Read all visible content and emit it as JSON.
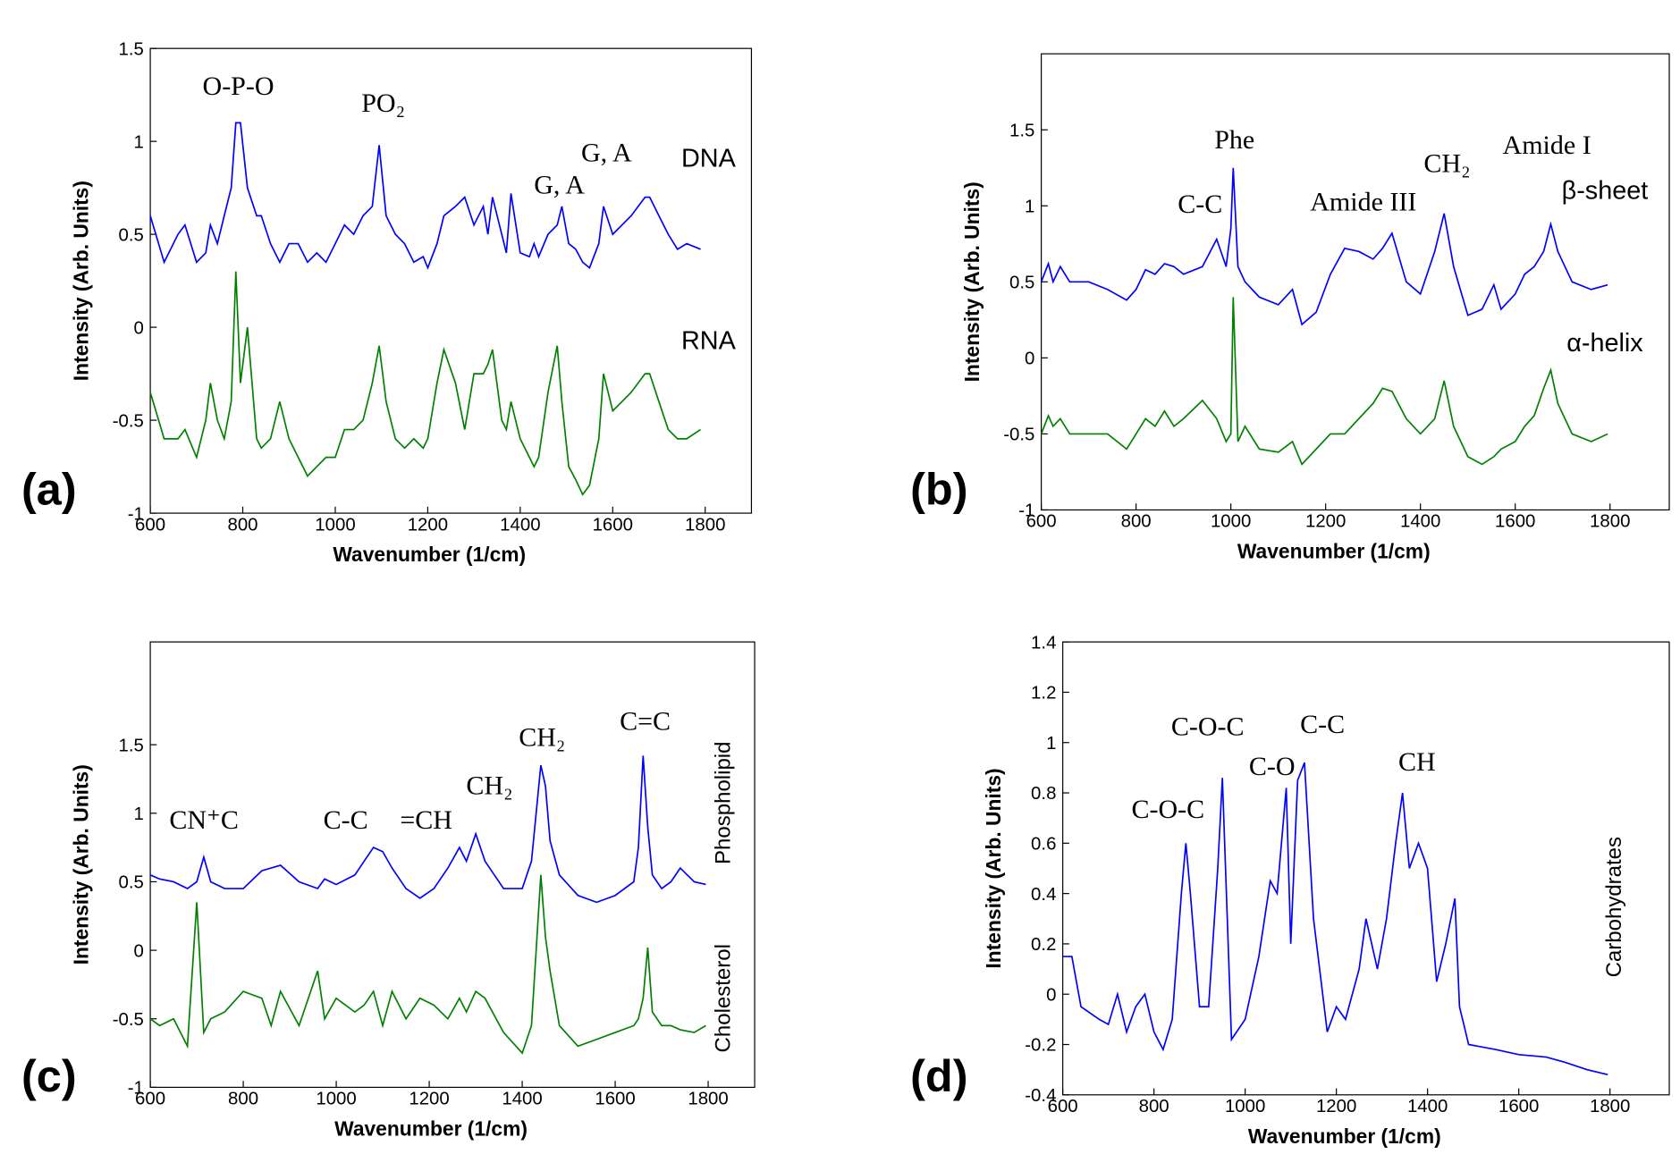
{
  "chart_data": [
    {
      "type": "line",
      "panel_label": "(a)",
      "xlabel": "Wavenumber (1/cm)",
      "ylabel": "Intensity (Arb. Units)",
      "xlim": [
        600,
        1900
      ],
      "ylim": [
        -1,
        1.5
      ],
      "xticks": [
        600,
        800,
        1000,
        1200,
        1400,
        1600,
        1800
      ],
      "yticks": [
        -1,
        -0.5,
        0,
        0.5,
        1,
        1.5
      ],
      "annotations": [
        "O-P-O",
        "PO₂",
        "G, A",
        "G, A"
      ],
      "x": [
        600,
        630,
        660,
        675,
        700,
        720,
        730,
        745,
        760,
        775,
        785,
        795,
        810,
        830,
        840,
        860,
        880,
        900,
        920,
        940,
        960,
        980,
        1000,
        1020,
        1040,
        1060,
        1080,
        1095,
        1110,
        1130,
        1150,
        1170,
        1190,
        1200,
        1220,
        1235,
        1260,
        1280,
        1300,
        1320,
        1330,
        1340,
        1360,
        1370,
        1380,
        1400,
        1420,
        1430,
        1440,
        1460,
        1480,
        1490,
        1505,
        1520,
        1535,
        1550,
        1570,
        1580,
        1600,
        1620,
        1640,
        1670,
        1680,
        1700,
        1720,
        1740,
        1760,
        1790
      ],
      "series": [
        {
          "name": "DNA",
          "color": "#0000ff",
          "values": [
            0.6,
            0.35,
            0.5,
            0.55,
            0.35,
            0.4,
            0.55,
            0.45,
            0.6,
            0.75,
            1.1,
            1.1,
            0.75,
            0.6,
            0.6,
            0.45,
            0.35,
            0.45,
            0.45,
            0.35,
            0.4,
            0.35,
            0.45,
            0.55,
            0.5,
            0.6,
            0.65,
            0.98,
            0.6,
            0.5,
            0.45,
            0.35,
            0.38,
            0.32,
            0.45,
            0.6,
            0.65,
            0.7,
            0.55,
            0.65,
            0.5,
            0.7,
            0.5,
            0.4,
            0.72,
            0.4,
            0.38,
            0.45,
            0.38,
            0.5,
            0.55,
            0.65,
            0.45,
            0.42,
            0.35,
            0.32,
            0.45,
            0.65,
            0.5,
            0.55,
            0.6,
            0.7,
            0.7,
            0.6,
            0.5,
            0.42,
            0.45,
            0.42
          ]
        },
        {
          "name": "RNA",
          "color": "#008000",
          "values": [
            -0.35,
            -0.6,
            -0.6,
            -0.55,
            -0.7,
            -0.5,
            -0.3,
            -0.5,
            -0.6,
            -0.4,
            0.3,
            -0.3,
            0.0,
            -0.6,
            -0.65,
            -0.6,
            -0.4,
            -0.6,
            -0.7,
            -0.8,
            -0.75,
            -0.7,
            -0.7,
            -0.55,
            -0.55,
            -0.5,
            -0.3,
            -0.1,
            -0.4,
            -0.6,
            -0.65,
            -0.6,
            -0.65,
            -0.6,
            -0.3,
            -0.12,
            -0.3,
            -0.55,
            -0.25,
            -0.25,
            -0.2,
            -0.12,
            -0.5,
            -0.55,
            -0.4,
            -0.6,
            -0.7,
            -0.75,
            -0.7,
            -0.35,
            -0.1,
            -0.4,
            -0.75,
            -0.82,
            -0.9,
            -0.85,
            -0.6,
            -0.25,
            -0.45,
            -0.4,
            -0.35,
            -0.25,
            -0.25,
            -0.4,
            -0.55,
            -0.6,
            -0.6,
            -0.55
          ]
        }
      ]
    },
    {
      "type": "line",
      "panel_label": "(b)",
      "xlabel": "Wavenumber (1/cm)",
      "ylabel": "Intensity (Arb. Units)",
      "xlim": [
        600,
        1925
      ],
      "ylim": [
        -1,
        2
      ],
      "xticks": [
        600,
        800,
        1000,
        1200,
        1400,
        1600,
        1800
      ],
      "yticks": [
        -1,
        -0.5,
        0,
        0.5,
        1,
        1.5
      ],
      "annotations": [
        "Phe",
        "C-C",
        "Amide III",
        "CH₂",
        "Amide I"
      ],
      "x": [
        600,
        615,
        625,
        640,
        660,
        700,
        740,
        780,
        800,
        820,
        840,
        860,
        880,
        900,
        940,
        970,
        990,
        1000,
        1005,
        1015,
        1030,
        1060,
        1100,
        1130,
        1150,
        1180,
        1210,
        1240,
        1270,
        1300,
        1320,
        1340,
        1370,
        1400,
        1430,
        1450,
        1470,
        1500,
        1530,
        1555,
        1570,
        1600,
        1620,
        1640,
        1660,
        1675,
        1690,
        1720,
        1760,
        1795
      ],
      "series": [
        {
          "name": "β-sheet",
          "color": "#0000ff",
          "values": [
            0.5,
            0.62,
            0.5,
            0.6,
            0.5,
            0.5,
            0.45,
            0.38,
            0.45,
            0.58,
            0.55,
            0.62,
            0.6,
            0.55,
            0.6,
            0.78,
            0.6,
            0.85,
            1.25,
            0.6,
            0.5,
            0.4,
            0.35,
            0.45,
            0.22,
            0.3,
            0.55,
            0.72,
            0.7,
            0.65,
            0.72,
            0.82,
            0.5,
            0.42,
            0.7,
            0.95,
            0.6,
            0.28,
            0.32,
            0.48,
            0.32,
            0.42,
            0.55,
            0.6,
            0.7,
            0.88,
            0.7,
            0.5,
            0.45,
            0.48
          ]
        },
        {
          "name": "α-helix",
          "color": "#008000",
          "values": [
            -0.5,
            -0.38,
            -0.45,
            -0.4,
            -0.5,
            -0.5,
            -0.5,
            -0.6,
            -0.5,
            -0.4,
            -0.45,
            -0.35,
            -0.45,
            -0.4,
            -0.28,
            -0.4,
            -0.55,
            -0.5,
            0.4,
            -0.55,
            -0.45,
            -0.6,
            -0.62,
            -0.55,
            -0.7,
            -0.6,
            -0.5,
            -0.5,
            -0.4,
            -0.3,
            -0.2,
            -0.22,
            -0.4,
            -0.5,
            -0.4,
            -0.15,
            -0.45,
            -0.65,
            -0.7,
            -0.65,
            -0.6,
            -0.55,
            -0.45,
            -0.38,
            -0.2,
            -0.08,
            -0.3,
            -0.5,
            -0.55,
            -0.5
          ]
        }
      ]
    },
    {
      "type": "line",
      "panel_label": "(c)",
      "xlabel": "Wavenumber (1/cm)",
      "ylabel": "Intensity (Arb. Units)",
      "xlim": [
        600,
        1900
      ],
      "ylim": [
        -1,
        2.25
      ],
      "xticks": [
        600,
        800,
        1000,
        1200,
        1400,
        1600,
        1800
      ],
      "yticks": [
        -1,
        -0.5,
        0,
        0.5,
        1,
        1.5
      ],
      "annotations": [
        "CN⁺C",
        "C-C",
        "=CH",
        "CH₂",
        "CH₂",
        "C=C"
      ],
      "x": [
        600,
        620,
        650,
        680,
        700,
        715,
        730,
        760,
        800,
        840,
        860,
        880,
        920,
        960,
        975,
        1000,
        1040,
        1060,
        1080,
        1100,
        1120,
        1150,
        1180,
        1210,
        1240,
        1265,
        1280,
        1300,
        1320,
        1360,
        1400,
        1420,
        1440,
        1450,
        1460,
        1480,
        1520,
        1560,
        1600,
        1640,
        1650,
        1660,
        1670,
        1680,
        1700,
        1720,
        1740,
        1770,
        1795
      ],
      "series": [
        {
          "name": "Phospholipid",
          "color": "#0000ff",
          "values": [
            0.55,
            0.52,
            0.5,
            0.45,
            0.5,
            0.68,
            0.5,
            0.45,
            0.45,
            0.58,
            0.6,
            0.62,
            0.5,
            0.45,
            0.52,
            0.48,
            0.55,
            0.65,
            0.75,
            0.72,
            0.6,
            0.45,
            0.38,
            0.45,
            0.6,
            0.75,
            0.65,
            0.85,
            0.65,
            0.45,
            0.45,
            0.65,
            1.35,
            1.2,
            0.8,
            0.55,
            0.4,
            0.35,
            0.4,
            0.5,
            0.75,
            1.42,
            0.9,
            0.55,
            0.45,
            0.5,
            0.6,
            0.5,
            0.48
          ]
        },
        {
          "name": "Cholesterol",
          "color": "#008000",
          "values": [
            -0.5,
            -0.55,
            -0.5,
            -0.7,
            0.35,
            -0.6,
            -0.5,
            -0.45,
            -0.3,
            -0.35,
            -0.55,
            -0.3,
            -0.55,
            -0.15,
            -0.5,
            -0.35,
            -0.45,
            -0.4,
            -0.3,
            -0.55,
            -0.3,
            -0.5,
            -0.35,
            -0.4,
            -0.5,
            -0.35,
            -0.45,
            -0.3,
            -0.35,
            -0.6,
            -0.75,
            -0.55,
            0.55,
            0.1,
            -0.15,
            -0.55,
            -0.7,
            -0.65,
            -0.6,
            -0.55,
            -0.5,
            -0.35,
            0.02,
            -0.45,
            -0.55,
            -0.55,
            -0.58,
            -0.6,
            -0.55
          ]
        }
      ]
    },
    {
      "type": "line",
      "panel_label": "(d)",
      "xlabel": "Wavenumber (1/cm)",
      "ylabel": "Intensity (Arb. Units)",
      "xlim": [
        600,
        1930
      ],
      "ylim": [
        -0.4,
        1.4
      ],
      "xticks": [
        600,
        800,
        1000,
        1200,
        1400,
        1600,
        1800
      ],
      "yticks": [
        -0.4,
        -0.2,
        0,
        0.2,
        0.4,
        0.6,
        0.8,
        1,
        1.2,
        1.4
      ],
      "annotations": [
        "C-O-C",
        "C-O-C",
        "C-O",
        "C-C",
        "CH"
      ],
      "x": [
        600,
        620,
        640,
        680,
        700,
        720,
        740,
        760,
        780,
        800,
        820,
        840,
        860,
        870,
        880,
        900,
        920,
        940,
        950,
        970,
        1000,
        1030,
        1055,
        1070,
        1090,
        1100,
        1115,
        1130,
        1150,
        1180,
        1200,
        1220,
        1250,
        1265,
        1290,
        1310,
        1330,
        1345,
        1360,
        1380,
        1400,
        1420,
        1440,
        1460,
        1470,
        1490,
        1550,
        1600,
        1660,
        1700,
        1750,
        1795
      ],
      "series": [
        {
          "name": "Carbohydrates",
          "color": "#0000ff",
          "values": [
            0.15,
            0.15,
            -0.05,
            -0.1,
            -0.12,
            0.0,
            -0.15,
            -0.05,
            0.0,
            -0.15,
            -0.22,
            -0.1,
            0.4,
            0.6,
            0.4,
            -0.05,
            -0.05,
            0.5,
            0.86,
            -0.18,
            -0.1,
            0.15,
            0.45,
            0.4,
            0.82,
            0.2,
            0.85,
            0.92,
            0.3,
            -0.15,
            -0.05,
            -0.1,
            0.1,
            0.3,
            0.1,
            0.3,
            0.6,
            0.8,
            0.5,
            0.6,
            0.5,
            0.05,
            0.2,
            0.38,
            -0.05,
            -0.2,
            -0.22,
            -0.24,
            -0.25,
            -0.27,
            -0.3,
            -0.32
          ]
        }
      ]
    }
  ]
}
